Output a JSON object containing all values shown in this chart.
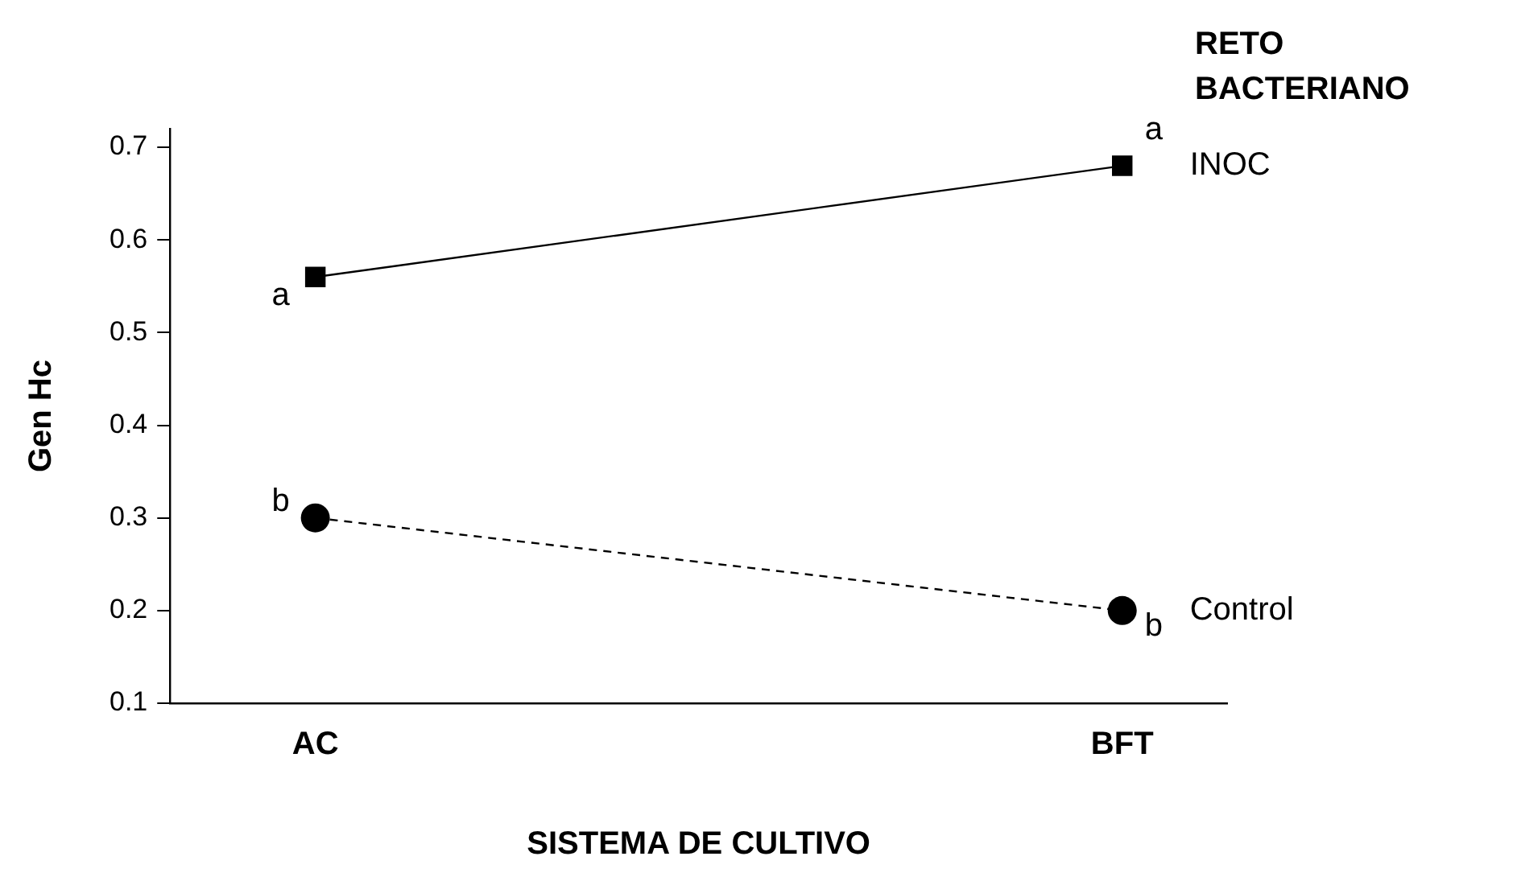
{
  "chart_data": {
    "type": "line",
    "xlabel": "SISTEMA DE CULTIVO",
    "ylabel": "Gen Hc",
    "legend_title": "RETO BACTERIANO",
    "categories": [
      "AC",
      "BFT"
    ],
    "series": [
      {
        "name": "INOC",
        "color": "#000000",
        "values": [
          0.56,
          0.68
        ],
        "marker": "square",
        "line_style": "solid"
      },
      {
        "name": "Control",
        "color": "#000000",
        "values": [
          0.3,
          0.2
        ],
        "marker": "circle",
        "line_style": "dashed"
      }
    ],
    "ylim": [
      0.1,
      0.72
    ],
    "yticks": [
      0.1,
      0.2,
      0.3,
      0.4,
      0.5,
      0.6,
      0.7
    ],
    "grid": false,
    "legend": false,
    "annotations": [
      {
        "text": "a",
        "x": "AC",
        "y": 0.56
      },
      {
        "text": "a",
        "x": "BFT",
        "y": 0.68
      },
      {
        "text": "b",
        "x": "AC",
        "y": 0.3
      },
      {
        "text": "b",
        "x": "BFT",
        "y": 0.2
      }
    ]
  }
}
